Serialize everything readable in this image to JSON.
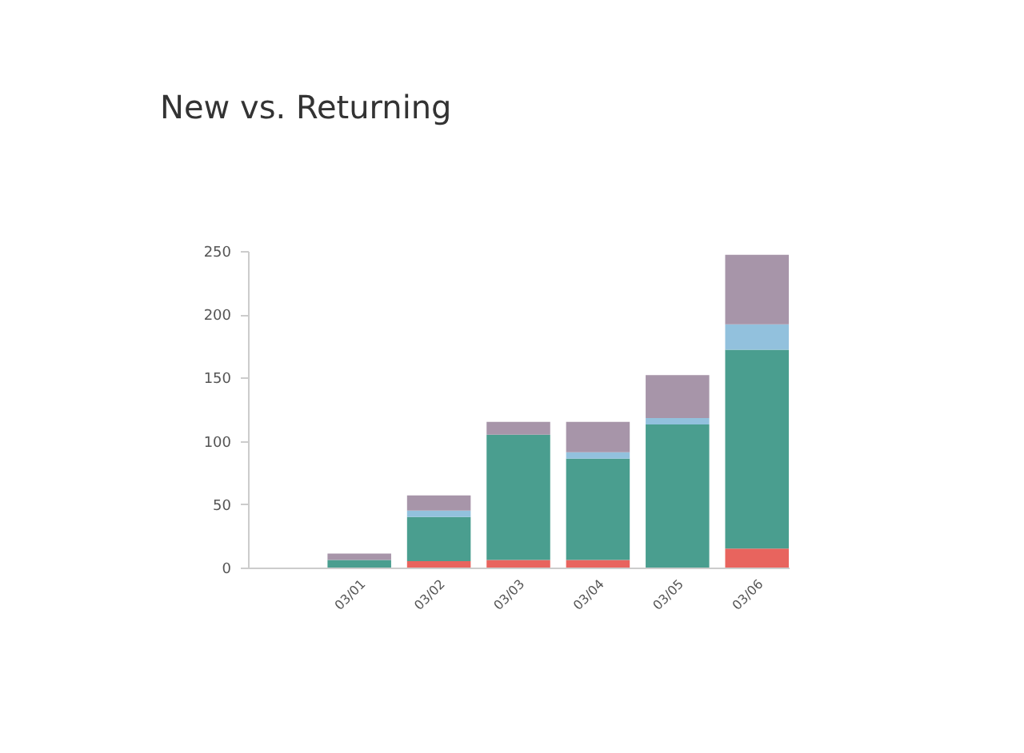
{
  "chart_data": {
    "type": "bar",
    "title": "New vs. Returning",
    "stacked": true,
    "categories": [
      null,
      "03/01",
      "03/02",
      "03/03",
      "03/04",
      "03/05",
      "03/06"
    ],
    "series": [
      {
        "color": "#e8645e",
        "values": [
          null,
          null,
          5,
          6,
          6,
          null,
          15
        ]
      },
      {
        "color": "#4a9e8f",
        "values": [
          null,
          6,
          35,
          99,
          80,
          113,
          157
        ]
      },
      {
        "color": "#92c1dd",
        "values": [
          null,
          null,
          5,
          null,
          5,
          5,
          20
        ]
      },
      {
        "color": "#a795a9",
        "values": [
          null,
          5,
          12,
          10,
          24,
          34,
          55
        ]
      }
    ],
    "ylim": [
      0,
      250
    ],
    "yticks": [
      0,
      50,
      100,
      150,
      200,
      250
    ],
    "grid": false,
    "legend": false
  }
}
